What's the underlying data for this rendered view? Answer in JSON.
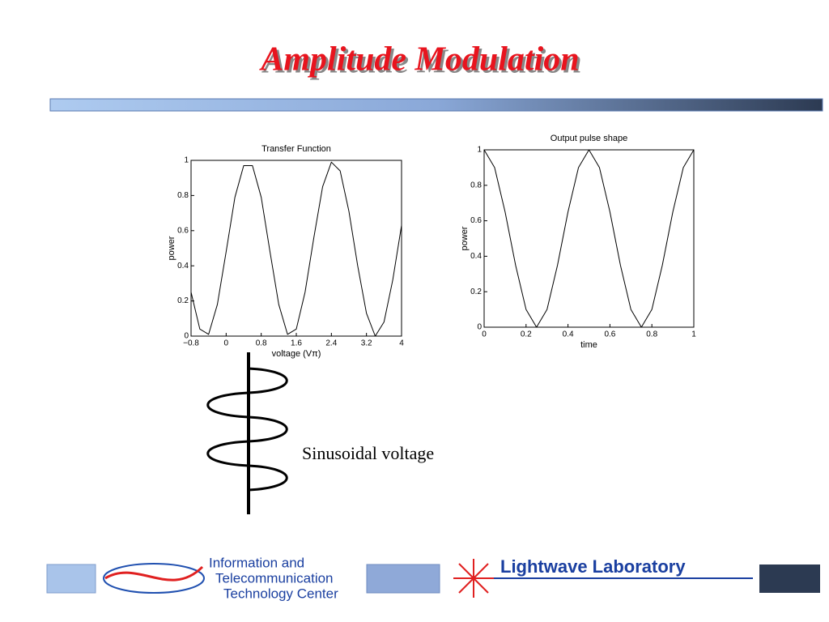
{
  "slide": {
    "title": "Amplitude Modulation",
    "diagram_label": "Sinusoidal voltage",
    "footer_left": [
      "Information and",
      "Telecommunication",
      "Technology Center"
    ],
    "footer_right": "Lightwave Laboratory"
  },
  "chart_data": [
    {
      "type": "line",
      "title": "Transfer Function",
      "x_label": "voltage (Vπ)",
      "y_label": "power",
      "x": [
        -0.8,
        -0.6,
        -0.4,
        -0.2,
        0,
        0.2,
        0.4,
        0.6,
        0.8,
        1.0,
        1.2,
        1.4,
        1.6,
        1.8,
        2.0,
        2.2,
        2.4,
        2.6,
        2.8,
        3.0,
        3.2,
        3.4,
        3.6,
        3.8,
        4.0
      ],
      "series": [
        {
          "name": "power",
          "color": "#000000",
          "values": [
            0.25,
            0.04,
            0.01,
            0.18,
            0.48,
            0.79,
            0.97,
            0.97,
            0.79,
            0.48,
            0.18,
            0.01,
            0.04,
            0.25,
            0.56,
            0.85,
            0.99,
            0.94,
            0.71,
            0.4,
            0.13,
            0.0,
            0.08,
            0.32,
            0.63
          ]
        }
      ],
      "xlim": [
        -0.8,
        4
      ],
      "ylim": [
        0,
        1
      ],
      "xticks": [
        {
          "value": -0.8,
          "label": "−0.8"
        },
        0,
        0.8,
        1.6,
        2.4,
        3.2,
        4
      ],
      "yticks": [
        0,
        0.2,
        0.4,
        0.6,
        0.8,
        1
      ],
      "grid": false
    },
    {
      "type": "line",
      "title": "Output pulse shape",
      "x_label": "time",
      "y_label": "power",
      "x": [
        0,
        0.05,
        0.1,
        0.15,
        0.2,
        0.25,
        0.3,
        0.35,
        0.4,
        0.45,
        0.5,
        0.55,
        0.6,
        0.65,
        0.7,
        0.75,
        0.8,
        0.85,
        0.9,
        0.95,
        1
      ],
      "series": [
        {
          "name": "power",
          "color": "#000000",
          "values": [
            1,
            0.9,
            0.65,
            0.35,
            0.1,
            0,
            0.1,
            0.35,
            0.65,
            0.9,
            1,
            0.9,
            0.65,
            0.35,
            0.1,
            0,
            0.1,
            0.35,
            0.65,
            0.9,
            1
          ]
        }
      ],
      "xlim": [
        0,
        1
      ],
      "ylim": [
        0,
        1
      ],
      "xticks": [
        0,
        0.2,
        0.4,
        0.6,
        0.8,
        1
      ],
      "yticks": [
        0,
        0.2,
        0.4,
        0.6,
        0.8,
        1
      ],
      "grid": false
    }
  ]
}
